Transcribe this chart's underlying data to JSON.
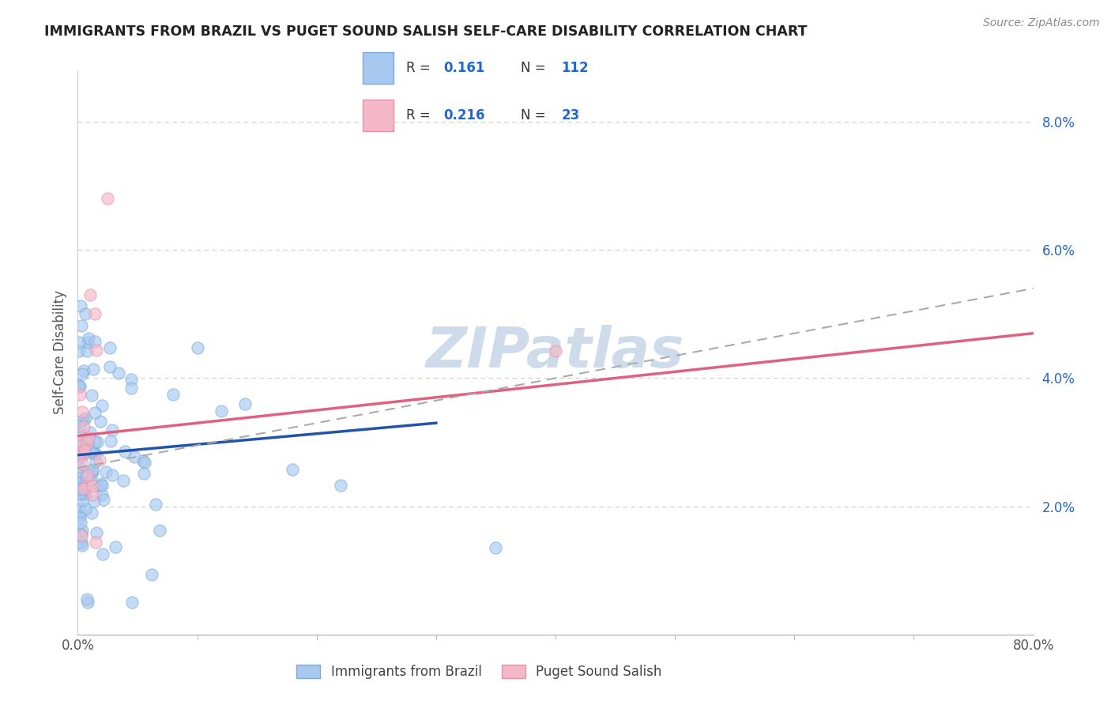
{
  "title": "IMMIGRANTS FROM BRAZIL VS PUGET SOUND SALISH SELF-CARE DISABILITY CORRELATION CHART",
  "source": "Source: ZipAtlas.com",
  "ylabel": "Self-Care Disability",
  "xlim": [
    0.0,
    0.8
  ],
  "ylim": [
    0.0,
    0.088
  ],
  "xtick_positions": [
    0.0,
    0.8
  ],
  "xtick_labels": [
    "0.0%",
    "80.0%"
  ],
  "ytick_vals": [
    0.02,
    0.04,
    0.06,
    0.08
  ],
  "ytick_labels": [
    "2.0%",
    "4.0%",
    "6.0%",
    "8.0%"
  ],
  "blue_fill": "#a8c8f0",
  "blue_edge": "#7aaad8",
  "pink_fill": "#f4b8c8",
  "pink_edge": "#e890a8",
  "blue_line_color": "#2255aa",
  "pink_line_color": "#e06080",
  "dashed_line_color": "#aaaaaa",
  "legend_R1": "0.161",
  "legend_N1": "112",
  "legend_R2": "0.216",
  "legend_N2": "23",
  "legend_text_color": "#2266cc",
  "watermark_color": "#c8d8e8",
  "blue_trend_x0": 0.0,
  "blue_trend_x1": 0.3,
  "blue_trend_y0": 0.028,
  "blue_trend_y1": 0.033,
  "pink_trend_x0": 0.0,
  "pink_trend_x1": 0.8,
  "pink_trend_y0": 0.031,
  "pink_trend_y1": 0.047,
  "dashed_trend_x0": 0.0,
  "dashed_trend_x1": 0.8,
  "dashed_trend_y0": 0.026,
  "dashed_trend_y1": 0.054
}
